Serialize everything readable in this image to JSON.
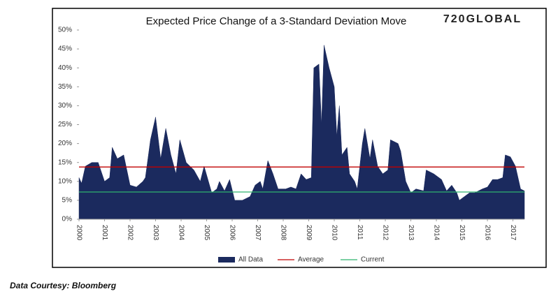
{
  "chart_data": {
    "type": "area",
    "title": "Expected Price Change of a 3-Standard Deviation Move",
    "logo": "720GLOBAL",
    "source": "Data Courtesy: Bloomberg",
    "x": [
      2000,
      2000.1,
      2000.25,
      2000.5,
      2000.75,
      2001.0,
      2001.2,
      2001.3,
      2001.5,
      2001.75,
      2002.0,
      2002.25,
      2002.5,
      2002.6,
      2002.8,
      2003.0,
      2003.2,
      2003.4,
      2003.6,
      2003.8,
      2003.95,
      2004.2,
      2004.5,
      2004.75,
      2004.9,
      2005.2,
      2005.4,
      2005.5,
      2005.7,
      2005.9,
      2006.1,
      2006.4,
      2006.7,
      2006.9,
      2007.1,
      2007.2,
      2007.4,
      2007.6,
      2007.8,
      2008.1,
      2008.3,
      2008.5,
      2008.7,
      2008.9,
      2009.1,
      2009.2,
      2009.4,
      2009.5,
      2009.6,
      2009.8,
      2010.0,
      2010.1,
      2010.2,
      2010.3,
      2010.5,
      2010.6,
      2010.8,
      2010.9,
      2011.1,
      2011.2,
      2011.4,
      2011.5,
      2011.7,
      2011.9,
      2012.1,
      2012.2,
      2012.5,
      2012.6,
      2012.8,
      2013.0,
      2013.2,
      2013.5,
      2013.6,
      2013.9,
      2014.2,
      2014.4,
      2014.6,
      2014.8,
      2014.9,
      2015.1,
      2015.3,
      2015.5,
      2015.8,
      2016.0,
      2016.2,
      2016.4,
      2016.6,
      2016.7,
      2016.9,
      2017.1,
      2017.3,
      2017.45
    ],
    "series": [
      {
        "name": "All Data",
        "color": "#1b2a5e",
        "values": [
          11,
          9.5,
          14,
          15,
          15,
          10,
          11,
          19,
          16,
          17,
          9,
          8.5,
          10,
          11,
          21,
          27,
          16,
          24,
          17,
          12,
          21,
          15,
          13,
          10,
          14,
          7,
          8,
          10,
          7.5,
          10.5,
          5,
          5,
          6,
          9,
          10,
          8,
          15.5,
          12,
          8,
          8,
          8.5,
          8,
          12,
          10.5,
          11,
          40,
          41,
          25,
          46,
          40,
          35,
          22,
          30,
          17,
          19,
          12,
          10,
          8,
          20,
          24,
          16,
          21,
          14,
          12,
          13,
          21,
          20,
          18,
          10,
          7,
          8,
          7.5,
          13,
          12,
          10.5,
          7.5,
          9,
          7,
          5,
          6,
          7,
          7,
          8,
          8.5,
          10.5,
          10.5,
          11,
          17,
          16.5,
          14,
          8,
          7.5
        ]
      }
    ],
    "reference_lines": [
      {
        "name": "Average",
        "color": "#c00000",
        "value": 13.8
      },
      {
        "name": "Current",
        "color": "#2fb56e",
        "value": 7.2
      }
    ],
    "xlim": [
      2000,
      2017.45
    ],
    "xticks": [
      2000,
      2001,
      2002,
      2003,
      2004,
      2005,
      2006,
      2007,
      2008,
      2009,
      2010,
      2011,
      2012,
      2013,
      2014,
      2015,
      2016,
      2017
    ],
    "ylim": [
      0,
      50
    ],
    "yticks": [
      {
        "value": 0,
        "label": "0%"
      },
      {
        "value": 5,
        "label": "5%"
      },
      {
        "value": 10,
        "label": "10%"
      },
      {
        "value": 15,
        "label": "15%"
      },
      {
        "value": 20,
        "label": "20%"
      },
      {
        "value": 25,
        "label": "25%"
      },
      {
        "value": 30,
        "label": "30%"
      },
      {
        "value": 35,
        "label": "35%"
      },
      {
        "value": 40,
        "label": "40%"
      },
      {
        "value": 45,
        "label": "45%"
      },
      {
        "value": 50,
        "label": "50%"
      }
    ]
  }
}
